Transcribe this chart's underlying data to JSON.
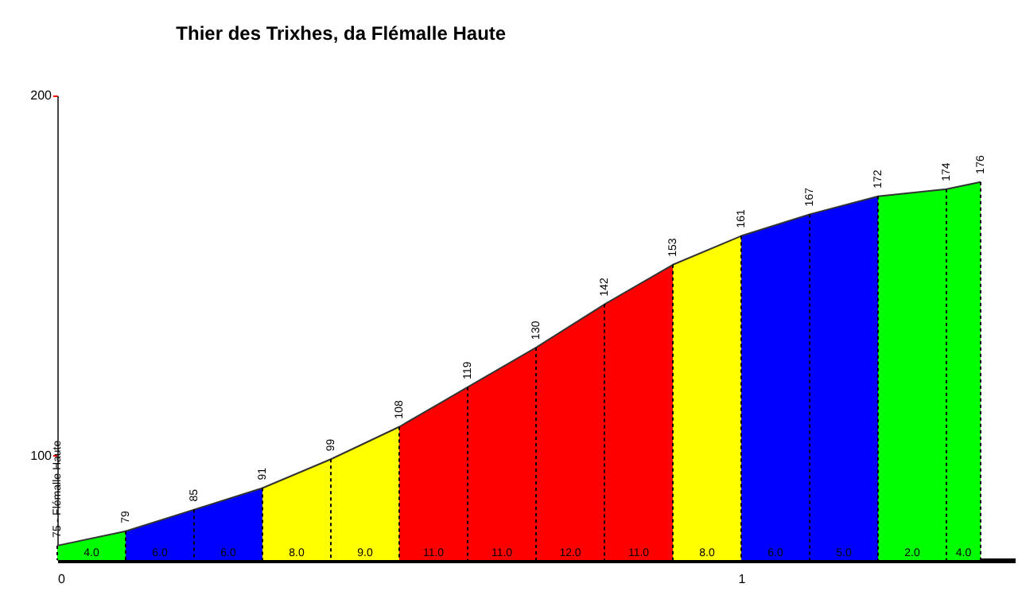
{
  "chart_data": {
    "type": "area",
    "title": "Thier des Trixhes, da Flémalle Haute",
    "xlim": [
      0,
      1.4
    ],
    "xticks": [
      0,
      1
    ],
    "ylim": [
      71,
      200
    ],
    "yticks": [
      100,
      200
    ],
    "series": [
      {
        "color": "#00ff00",
        "x": [
          0,
          0.1
        ],
        "values": [
          75,
          79
        ],
        "value_labels": [
          "75 - Flémalle Haute",
          "79"
        ]
      },
      {
        "color": "#0000ff",
        "x": [
          0.1,
          0.2,
          0.3
        ],
        "values": [
          79,
          85,
          91
        ],
        "value_labels": [
          null,
          "85",
          "91"
        ]
      },
      {
        "color": "#ffff00",
        "x": [
          0.3,
          0.4,
          0.5
        ],
        "values": [
          91,
          99,
          108
        ],
        "value_labels": [
          null,
          "99",
          "108"
        ]
      },
      {
        "color": "#ff0000",
        "x": [
          0.5,
          0.6,
          0.7,
          0.8,
          0.9
        ],
        "values": [
          108,
          119,
          130,
          142,
          153
        ],
        "value_labels": [
          null,
          "119",
          "130",
          "142",
          "153"
        ]
      },
      {
        "color": "#ffff00",
        "x": [
          0.9,
          1.0
        ],
        "values": [
          153,
          161
        ],
        "value_labels": [
          null,
          "161"
        ]
      },
      {
        "color": "#0000ff",
        "x": [
          1.0,
          1.1,
          1.2
        ],
        "values": [
          161,
          167,
          172
        ],
        "value_labels": [
          null,
          "167",
          "172"
        ]
      },
      {
        "color": "#00ff00",
        "x": [
          1.2,
          1.3,
          1.35
        ],
        "values": [
          172,
          174,
          176
        ],
        "value_labels": [
          null,
          "174",
          "176"
        ]
      }
    ],
    "annotations": [
      {
        "text": "4.0",
        "x": 0.05,
        "y": 73
      },
      {
        "text": "6.0",
        "x": 0.15,
        "y": 73
      },
      {
        "text": "6.0",
        "x": 0.25,
        "y": 73
      },
      {
        "text": "8.0",
        "x": 0.35,
        "y": 73
      },
      {
        "text": "9.0",
        "x": 0.45,
        "y": 73
      },
      {
        "text": "11.0",
        "x": 0.55,
        "y": 73
      },
      {
        "text": "11.0",
        "x": 0.65,
        "y": 73
      },
      {
        "text": "12.0",
        "x": 0.75,
        "y": 73
      },
      {
        "text": "11.0",
        "x": 0.85,
        "y": 73
      },
      {
        "text": "8.0",
        "x": 0.95,
        "y": 73
      },
      {
        "text": "6.0",
        "x": 1.05,
        "y": 73
      },
      {
        "text": "5.0",
        "x": 1.15,
        "y": 73
      },
      {
        "text": "2.0",
        "x": 1.25,
        "y": 73
      },
      {
        "text": "4.0",
        "x": 1.325,
        "y": 73
      }
    ]
  }
}
